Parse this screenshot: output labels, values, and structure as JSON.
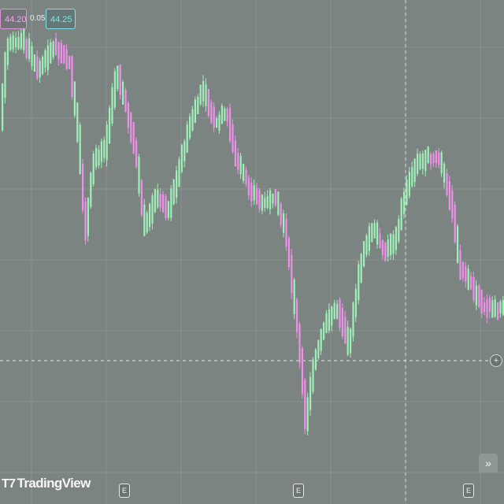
{
  "toolbar": {
    "bid_price": "44.20",
    "spread": "0.05",
    "ask_price": "44.25"
  },
  "chart": {
    "crosshair_icon": "crosshair-plus-icon",
    "scroll_to_realtime_icon": "double-chevron-right-icon",
    "scroll_to_realtime_glyph": "»",
    "crosshair_glyph": "+"
  },
  "branding": {
    "logo_mark": "T7",
    "logo_text": "TradingView"
  },
  "event_markers": [
    {
      "label": "E"
    },
    {
      "label": "E"
    },
    {
      "label": "E"
    }
  ],
  "colors": {
    "background": "#7c8482",
    "bearish_candle": "#ee8fea",
    "bullish_candle": "#9ef0b8"
  }
}
